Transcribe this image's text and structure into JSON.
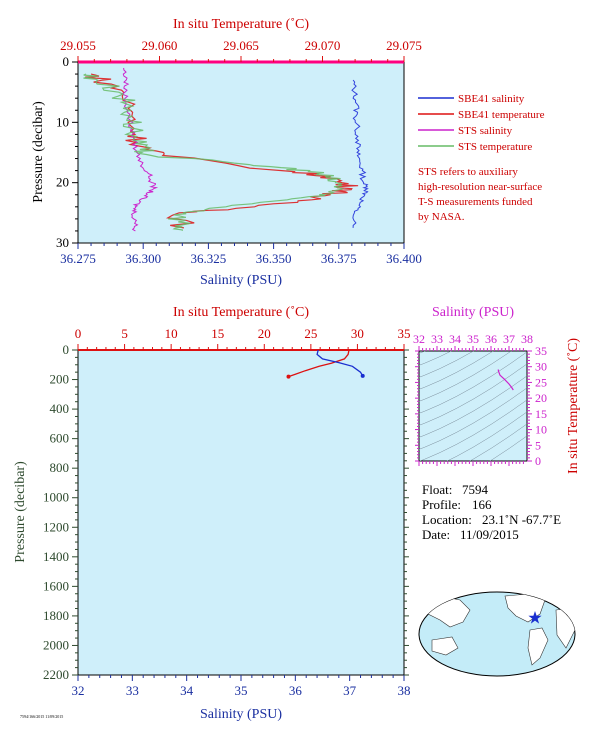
{
  "chart_data": [
    {
      "type": "line",
      "top_axis_label": "In situ Temperature (˚C)",
      "bottom_axis_label": "Salinity (PSU)",
      "y_axis_label": "Pressure (decibar)",
      "temperature_ticks": [
        "29.055",
        "29.060",
        "29.065",
        "29.070",
        "29.075"
      ],
      "temperature_range": [
        29.055,
        29.075
      ],
      "salinity_ticks": [
        "36.275",
        "36.300",
        "36.325",
        "36.350",
        "36.375",
        "36.400"
      ],
      "salinity_range": [
        36.275,
        36.4
      ],
      "pressure_ticks": [
        "0",
        "10",
        "20",
        "30"
      ],
      "pressure_range": [
        0,
        30
      ],
      "legend": [
        {
          "label": "SBE41 salinity",
          "color": "#1a2fd0"
        },
        {
          "label": "SBE41 temperature",
          "color": "#dd1111"
        },
        {
          "label": "STS salinity",
          "color": "#cc22cc"
        },
        {
          "label": "STS temperature",
          "color": "#66bb66"
        }
      ],
      "note": [
        "STS refers to auxiliary",
        "high-resolution near-surface",
        "T-S measurements funded",
        "by NASA."
      ],
      "series": [
        {
          "name": "SBE41 salinity",
          "quantity": "salinity",
          "color": "#3344dd",
          "points": [
            [
              36.3805,
              3
            ],
            [
              36.381,
              5
            ],
            [
              36.382,
              7
            ],
            [
              36.3815,
              9
            ],
            [
              36.382,
              11
            ],
            [
              36.3825,
              13
            ],
            [
              36.382,
              15
            ],
            [
              36.383,
              16.5
            ],
            [
              36.384,
              18
            ],
            [
              36.3845,
              20
            ],
            [
              36.386,
              21
            ],
            [
              36.385,
              22
            ],
            [
              36.383,
              23.5
            ],
            [
              36.381,
              25
            ],
            [
              36.3805,
              27.5
            ]
          ]
        },
        {
          "name": "SBE41 temperature",
          "quantity": "temperature",
          "color": "#dd1111",
          "points": [
            [
              29.0558,
              2
            ],
            [
              29.0565,
              3
            ],
            [
              29.0578,
              5
            ],
            [
              29.0583,
              9
            ],
            [
              29.0585,
              12
            ],
            [
              29.0589,
              14
            ],
            [
              29.0602,
              15.5
            ],
            [
              29.0675,
              18
            ],
            [
              29.0705,
              19
            ],
            [
              29.0712,
              20
            ],
            [
              29.0718,
              21
            ],
            [
              29.0705,
              22
            ],
            [
              29.0685,
              23
            ],
            [
              29.0642,
              24.5
            ],
            [
              29.0612,
              25
            ],
            [
              29.0615,
              27.5
            ]
          ]
        },
        {
          "name": "STS salinity",
          "quantity": "salinity",
          "color": "#cc22cc",
          "points": [
            [
              36.2925,
              1
            ],
            [
              36.2935,
              3
            ],
            [
              36.293,
              5
            ],
            [
              36.2935,
              7
            ],
            [
              36.2945,
              9
            ],
            [
              36.2955,
              11
            ],
            [
              36.2965,
              13
            ],
            [
              36.2975,
              15
            ],
            [
              36.2995,
              17
            ],
            [
              36.302,
              18.5
            ],
            [
              36.3035,
              20
            ],
            [
              36.304,
              21
            ],
            [
              36.3015,
              22
            ],
            [
              36.2985,
              23
            ],
            [
              36.297,
              24
            ],
            [
              36.2965,
              25
            ],
            [
              36.297,
              26.5
            ],
            [
              36.297,
              28
            ]
          ]
        },
        {
          "name": "STS temperature",
          "quantity": "temperature",
          "color": "#66bb66",
          "points": [
            [
              29.0555,
              2
            ],
            [
              29.0562,
              3
            ],
            [
              29.0575,
              5
            ],
            [
              29.058,
              7
            ],
            [
              29.0583,
              9
            ],
            [
              29.0584,
              11
            ],
            [
              29.0584,
              13
            ],
            [
              29.0588,
              14.5
            ],
            [
              29.0595,
              15.5
            ],
            [
              29.0655,
              17
            ],
            [
              29.0692,
              18
            ],
            [
              29.0702,
              19
            ],
            [
              29.0708,
              20
            ],
            [
              29.0712,
              21
            ],
            [
              29.0698,
              22
            ],
            [
              29.0672,
              23
            ],
            [
              29.0628,
              24.5
            ],
            [
              29.0612,
              25.5
            ],
            [
              29.0614,
              27
            ],
            [
              29.0614,
              28
            ]
          ]
        }
      ]
    },
    {
      "type": "line",
      "top_axis_label": "In situ Temperature (˚C)",
      "bottom_axis_label": "Salinity (PSU)",
      "y_axis_label": "Pressure (decibar)",
      "temperature_ticks": [
        "0",
        "5",
        "10",
        "15",
        "20",
        "25",
        "30",
        "35"
      ],
      "temperature_range": [
        0,
        35
      ],
      "salinity_ticks": [
        "32",
        "33",
        "34",
        "35",
        "36",
        "37",
        "38"
      ],
      "salinity_range": [
        32,
        38
      ],
      "pressure_ticks": [
        "0",
        "200",
        "400",
        "600",
        "800",
        "1000",
        "1200",
        "1400",
        "1600",
        "1800",
        "2000",
        "2200"
      ],
      "pressure_range": [
        0,
        2200
      ],
      "series": [
        {
          "name": "Temperature",
          "quantity": "temperature",
          "color": "#dd1111",
          "points": [
            [
              29.1,
              0
            ],
            [
              29.0,
              30
            ],
            [
              28.6,
              60
            ],
            [
              27.2,
              90
            ],
            [
              25.9,
              110
            ],
            [
              24.4,
              140
            ],
            [
              23.3,
              165
            ],
            [
              22.6,
              180
            ]
          ]
        },
        {
          "name": "Salinity",
          "quantity": "salinity",
          "color": "#1a2fd0",
          "points": [
            [
              36.42,
              0
            ],
            [
              36.4,
              30
            ],
            [
              36.5,
              60
            ],
            [
              36.8,
              85
            ],
            [
              37.05,
              110
            ],
            [
              37.2,
              150
            ],
            [
              37.24,
              175
            ]
          ]
        }
      ]
    },
    {
      "type": "line",
      "top_axis_label": "Salinity (PSU)",
      "right_axis_label": "In situ Temperature (˚C)",
      "salinity_ticks": [
        "32",
        "33",
        "34",
        "35",
        "36",
        "37",
        "38"
      ],
      "salinity_range": [
        32,
        38
      ],
      "temperature_ticks": [
        "0",
        "5",
        "10",
        "15",
        "20",
        "25",
        "30",
        "35"
      ],
      "temperature_range": [
        0,
        35
      ],
      "series": [
        {
          "name": "T-S",
          "color": "#cc22cc",
          "points": [
            [
              36.4,
              29.1
            ],
            [
              36.42,
              28.5
            ],
            [
              36.5,
              27.3
            ],
            [
              36.75,
              26.0
            ],
            [
              37.0,
              24.5
            ],
            [
              37.15,
              23.4
            ],
            [
              37.24,
              22.6
            ]
          ]
        }
      ]
    }
  ],
  "info": {
    "float_label": "Float:",
    "float_value": "7594",
    "profile_label": "Profile:",
    "profile_value": "166",
    "location_label": "Location:",
    "location_value": "23.1˚N  -67.7˚E",
    "date_label": "Date:",
    "date_value": "11/09/2015"
  },
  "footer_code": "7594/166/2015 11/09/2015",
  "colors": {
    "plot_bg": "#cfeffa",
    "temperature_axis": "#dd1111",
    "salinity_axis": "#1a2fa0",
    "pressure_axis": "#2e4a2e",
    "ts_axis": "#cc22cc"
  }
}
